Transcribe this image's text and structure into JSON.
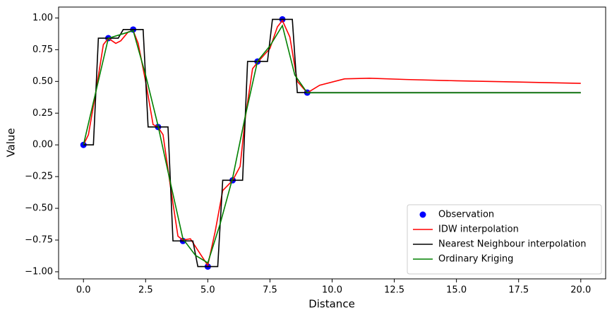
{
  "chart_data": {
    "type": "line",
    "xlabel": "Distance",
    "ylabel": "Value",
    "xlim": [
      -1,
      21
    ],
    "ylim": [
      -1.056,
      1.086
    ],
    "xticks": [
      {
        "value": 0,
        "label": "0.0"
      },
      {
        "value": 2.5,
        "label": "2.5"
      },
      {
        "value": 5,
        "label": "5.0"
      },
      {
        "value": 7.5,
        "label": "7.5"
      },
      {
        "value": 10,
        "label": "10.0"
      },
      {
        "value": 12.5,
        "label": "12.5"
      },
      {
        "value": 15,
        "label": "15.0"
      },
      {
        "value": 17.5,
        "label": "17.5"
      },
      {
        "value": 20,
        "label": "20.0"
      }
    ],
    "yticks": [
      {
        "value": -1,
        "label": "−1.00"
      },
      {
        "value": -0.75,
        "label": "−0.75"
      },
      {
        "value": -0.5,
        "label": "−0.50"
      },
      {
        "value": -0.25,
        "label": "−0.25"
      },
      {
        "value": 0,
        "label": "0.00"
      },
      {
        "value": 0.25,
        "label": "0.25"
      },
      {
        "value": 0.5,
        "label": "0.50"
      },
      {
        "value": 0.75,
        "label": "0.75"
      },
      {
        "value": 1,
        "label": "1.00"
      }
    ],
    "grid": false,
    "legend": "lower right",
    "series": [
      {
        "name": "Observation",
        "color": "#0000ff",
        "mode": "markers",
        "x": [
          0,
          1,
          2,
          3,
          4,
          5,
          6,
          7,
          8,
          9
        ],
        "values": [
          0,
          0.841,
          0.909,
          0.141,
          -0.757,
          -0.959,
          -0.279,
          0.657,
          0.989,
          0.412
        ]
      },
      {
        "name": "IDW interpolation",
        "color": "#ff0000",
        "mode": "line",
        "x": [
          0,
          0.2,
          0.5,
          0.8,
          1,
          1.3,
          1.5,
          1.8,
          2,
          2.2,
          2.5,
          2.8,
          3,
          3.2,
          3.5,
          3.8,
          4,
          4.3,
          4.6,
          5,
          5.3,
          5.6,
          6,
          6.3,
          6.5,
          6.8,
          7,
          7.5,
          7.8,
          8,
          8.3,
          8.6,
          9,
          9.5,
          10.5,
          11.5,
          13,
          15,
          17.5,
          20
        ],
        "values": [
          0,
          0.08,
          0.42,
          0.79,
          0.84,
          0.8,
          0.82,
          0.89,
          0.9,
          0.8,
          0.5,
          0.16,
          0.14,
          0.08,
          -0.33,
          -0.72,
          -0.75,
          -0.74,
          -0.83,
          -0.95,
          -0.68,
          -0.36,
          -0.28,
          -0.17,
          0.2,
          0.6,
          0.65,
          0.76,
          0.93,
          0.98,
          0.85,
          0.5,
          0.41,
          0.47,
          0.52,
          0.525,
          0.515,
          0.505,
          0.495,
          0.485
        ]
      },
      {
        "name": "Nearest Neighbour interpolation",
        "color": "#000000",
        "mode": "line",
        "x": [
          0,
          0.4,
          0.6,
          1.4,
          1.6,
          2.4,
          2.6,
          3.4,
          3.6,
          4.4,
          4.6,
          5.4,
          5.6,
          6.4,
          6.6,
          7.4,
          7.6,
          8.4,
          8.6,
          20
        ],
        "values": [
          0,
          0,
          0.841,
          0.841,
          0.909,
          0.909,
          0.141,
          0.141,
          -0.757,
          -0.757,
          -0.959,
          -0.959,
          -0.279,
          -0.279,
          0.657,
          0.657,
          0.989,
          0.989,
          0.412,
          0.412
        ]
      },
      {
        "name": "Ordinary Kriging",
        "color": "#008000",
        "mode": "line",
        "x": [
          0,
          0.5,
          1,
          1.5,
          2,
          2.5,
          3,
          3.5,
          4,
          4.5,
          5,
          5.5,
          6,
          6.5,
          7,
          7.5,
          8,
          8.5,
          9,
          20
        ],
        "values": [
          0,
          0.42,
          0.84,
          0.87,
          0.9,
          0.55,
          0.15,
          -0.3,
          -0.74,
          -0.87,
          -0.93,
          -0.62,
          -0.26,
          0.22,
          0.66,
          0.78,
          0.94,
          0.55,
          0.41,
          0.41
        ]
      }
    ]
  }
}
